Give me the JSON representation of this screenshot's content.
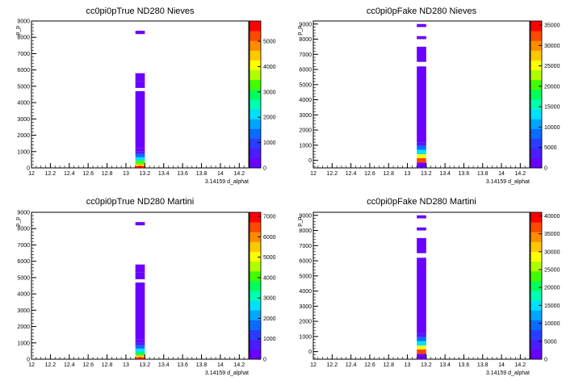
{
  "chart_data": [
    {
      "type": "heatmap",
      "title": "cc0pi0pTrue ND280 Nieves",
      "xlabel": "3.14159 d_alphat",
      "ylabel": "p_p",
      "xlim": [
        12,
        14.3
      ],
      "ylim": [
        0,
        9000
      ],
      "x_ticks": [
        "12",
        "12.2",
        "12.4",
        "12.6",
        "12.8",
        "13",
        "13.2",
        "13.4",
        "13.6",
        "13.8",
        "14",
        "14.2"
      ],
      "y_ticks": [
        "0",
        "1000",
        "2000",
        "3000",
        "4000",
        "5000",
        "6000",
        "7000",
        "8000",
        "9000"
      ],
      "z_max": 5800,
      "z_ticks": [
        "0",
        "1000",
        "2000",
        "3000",
        "4000",
        "5000"
      ],
      "x_bin": [
        13.1,
        13.2
      ],
      "cells": [
        {
          "y0": 0,
          "y1": 100,
          "z": 5600
        },
        {
          "y0": 100,
          "y1": 250,
          "z": 4400
        },
        {
          "y0": 250,
          "y1": 450,
          "z": 3100
        },
        {
          "y0": 450,
          "y1": 650,
          "z": 2100
        },
        {
          "y0": 650,
          "y1": 850,
          "z": 1300
        },
        {
          "y0": 850,
          "y1": 1000,
          "z": 700
        },
        {
          "y0": 1000,
          "y1": 1200,
          "z": 350
        },
        {
          "y0": 1200,
          "y1": 4700,
          "z": 60
        },
        {
          "y0": 4900,
          "y1": 5300,
          "z": 40
        },
        {
          "y0": 5300,
          "y1": 5800,
          "z": 30
        },
        {
          "y0": 8200,
          "y1": 8400,
          "z": 20
        }
      ]
    },
    {
      "type": "heatmap",
      "title": "cc0pi0pFake ND280 Nieves",
      "xlabel": "3.14159 d_alphat",
      "ylabel": "p_p",
      "xlim": [
        12,
        14.3
      ],
      "ylim": [
        -500,
        9200
      ],
      "x_ticks": [
        "12",
        "12.2",
        "12.4",
        "12.6",
        "12.8",
        "13",
        "13.2",
        "13.4",
        "13.6",
        "13.8",
        "14",
        "14.2"
      ],
      "y_ticks": [
        "0",
        "1000",
        "2000",
        "3000",
        "4000",
        "5000",
        "6000",
        "7000",
        "8000",
        "9000"
      ],
      "z_max": 36000,
      "z_ticks": [
        "0",
        "5000",
        "10000",
        "15000",
        "20000",
        "25000",
        "30000",
        "35000"
      ],
      "x_bin": [
        13.1,
        13.2
      ],
      "cells": [
        {
          "y0": -500,
          "y1": -150,
          "z": 1500
        },
        {
          "y0": -150,
          "y1": 150,
          "z": 33000
        },
        {
          "y0": 150,
          "y1": 400,
          "z": 25000
        },
        {
          "y0": 400,
          "y1": 700,
          "z": 14000
        },
        {
          "y0": 700,
          "y1": 950,
          "z": 8000
        },
        {
          "y0": 950,
          "y1": 1200,
          "z": 3000
        },
        {
          "y0": 1200,
          "y1": 6200,
          "z": 400
        },
        {
          "y0": 6500,
          "y1": 7500,
          "z": 200
        },
        {
          "y0": 8000,
          "y1": 8200,
          "z": 150
        },
        {
          "y0": 8800,
          "y1": 9000,
          "z": 150
        }
      ]
    },
    {
      "type": "heatmap",
      "title": "cc0pi0pTrue ND280 Martini",
      "xlabel": "3.14159 d_alphat",
      "ylabel": "p_p",
      "xlim": [
        12,
        14.3
      ],
      "ylim": [
        0,
        9000
      ],
      "x_ticks": [
        "12",
        "12.2",
        "12.4",
        "12.6",
        "12.8",
        "13",
        "13.2",
        "13.4",
        "13.6",
        "13.8",
        "14",
        "14.2"
      ],
      "y_ticks": [
        "0",
        "1000",
        "2000",
        "3000",
        "4000",
        "5000",
        "6000",
        "7000",
        "8000",
        "9000"
      ],
      "z_max": 7200,
      "z_ticks": [
        "0",
        "1000",
        "2000",
        "3000",
        "4000",
        "5000",
        "6000",
        "7000"
      ],
      "x_bin": [
        13.1,
        13.2
      ],
      "cells": [
        {
          "y0": 0,
          "y1": 100,
          "z": 7000
        },
        {
          "y0": 100,
          "y1": 250,
          "z": 5400
        },
        {
          "y0": 250,
          "y1": 450,
          "z": 3800
        },
        {
          "y0": 450,
          "y1": 650,
          "z": 2600
        },
        {
          "y0": 650,
          "y1": 850,
          "z": 1600
        },
        {
          "y0": 850,
          "y1": 1000,
          "z": 900
        },
        {
          "y0": 1000,
          "y1": 1200,
          "z": 400
        },
        {
          "y0": 1200,
          "y1": 4700,
          "z": 60
        },
        {
          "y0": 4900,
          "y1": 5300,
          "z": 40
        },
        {
          "y0": 5300,
          "y1": 5800,
          "z": 30
        },
        {
          "y0": 8200,
          "y1": 8400,
          "z": 20
        }
      ]
    },
    {
      "type": "heatmap",
      "title": "cc0pi0pFake ND280 Martini",
      "xlabel": "3.14159 d_alphat",
      "ylabel": "p_p",
      "xlim": [
        12,
        14.3
      ],
      "ylim": [
        -500,
        9200
      ],
      "x_ticks": [
        "12",
        "12.2",
        "12.4",
        "12.6",
        "12.8",
        "13",
        "13.2",
        "13.4",
        "13.6",
        "13.8",
        "14",
        "14.2"
      ],
      "y_ticks": [
        "0",
        "1000",
        "2000",
        "3000",
        "4000",
        "5000",
        "6000",
        "7000",
        "8000",
        "9000"
      ],
      "z_max": 41000,
      "z_ticks": [
        "0",
        "5000",
        "10000",
        "15000",
        "20000",
        "25000",
        "30000",
        "35000",
        "40000"
      ],
      "x_bin": [
        13.1,
        13.2
      ],
      "cells": [
        {
          "y0": -500,
          "y1": -150,
          "z": 1500
        },
        {
          "y0": -150,
          "y1": 150,
          "z": 38000
        },
        {
          "y0": 150,
          "y1": 400,
          "z": 28000
        },
        {
          "y0": 400,
          "y1": 700,
          "z": 16000
        },
        {
          "y0": 700,
          "y1": 950,
          "z": 9000
        },
        {
          "y0": 950,
          "y1": 1200,
          "z": 3500
        },
        {
          "y0": 1200,
          "y1": 6200,
          "z": 400
        },
        {
          "y0": 6500,
          "y1": 7500,
          "z": 200
        },
        {
          "y0": 8000,
          "y1": 8200,
          "z": 150
        },
        {
          "y0": 8800,
          "y1": 9000,
          "z": 150
        }
      ]
    }
  ]
}
